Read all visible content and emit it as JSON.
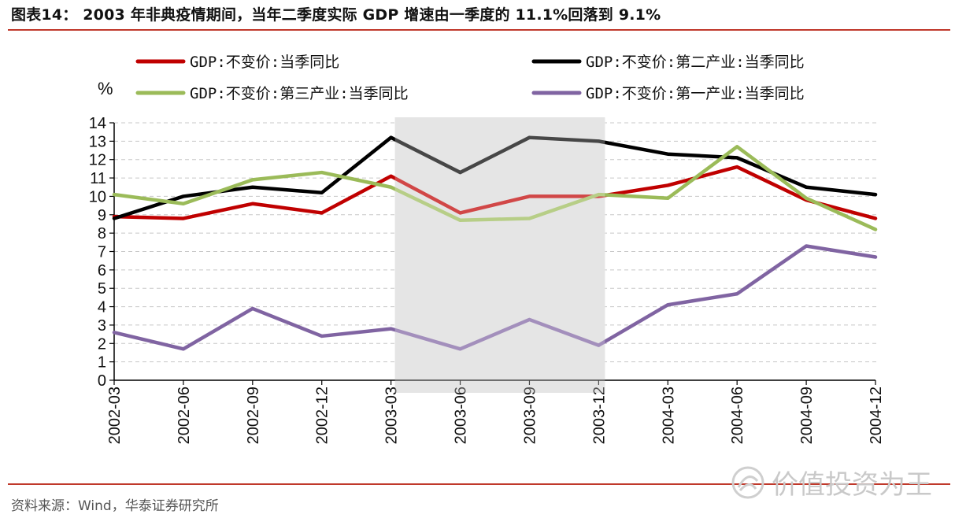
{
  "header": {
    "title": "图表14：  2003 年非典疫情期间，当年二季度实际 GDP 增速由一季度的 11.1%回落到 9.1%"
  },
  "footer": {
    "source": "资料来源：Wind，华泰证券研究所",
    "watermark": "价值投资为王"
  },
  "colors": {
    "rule": "#c0392b",
    "highlight": "#dcdcdc"
  },
  "chart_data": {
    "type": "line",
    "ylabel": "%",
    "ylim": [
      0,
      14
    ],
    "yticks": [
      0,
      1,
      2,
      3,
      4,
      5,
      6,
      7,
      8,
      9,
      10,
      11,
      12,
      13,
      14
    ],
    "grid": "horizontal dashed",
    "categories": [
      "2002-03",
      "2002-06",
      "2002-09",
      "2002-12",
      "2003-03",
      "2003-06",
      "2003-09",
      "2003-12",
      "2004-03",
      "2004-06",
      "2004-09",
      "2004-12"
    ],
    "highlight_range": [
      "2003-03",
      "2003-12"
    ],
    "legend_position": "top",
    "series": [
      {
        "name": "GDP:不变价:当季同比",
        "color": "#c00000",
        "values": [
          8.9,
          8.8,
          9.6,
          9.1,
          11.1,
          9.1,
          10.0,
          10.0,
          10.6,
          11.6,
          9.8,
          8.8
        ]
      },
      {
        "name": "GDP:不变价:第二产业:当季同比",
        "color": "#000000",
        "values": [
          8.8,
          10.0,
          10.5,
          10.2,
          13.2,
          11.3,
          13.2,
          13.0,
          12.3,
          12.1,
          10.5,
          10.1
        ]
      },
      {
        "name": "GDP:不变价:第三产业:当季同比",
        "color": "#9bbb59",
        "values": [
          10.1,
          9.6,
          10.9,
          11.3,
          10.5,
          8.7,
          8.8,
          10.1,
          9.9,
          12.7,
          9.9,
          8.2
        ]
      },
      {
        "name": "GDP:不变价:第一产业:当季同比",
        "color": "#8064a2",
        "values": [
          2.6,
          1.7,
          3.9,
          2.4,
          2.8,
          1.7,
          3.3,
          1.9,
          4.1,
          4.7,
          7.3,
          6.7
        ]
      }
    ]
  }
}
